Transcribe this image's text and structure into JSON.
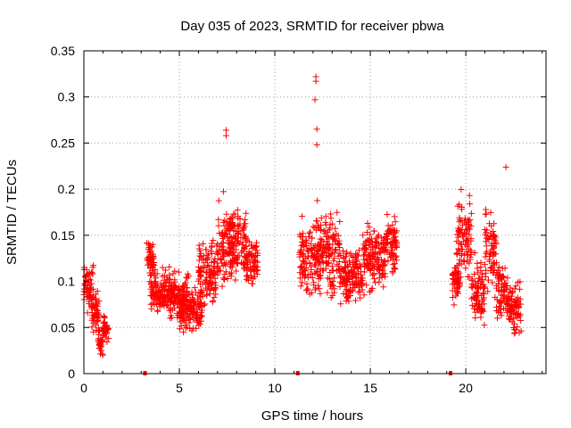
{
  "chart_data": {
    "type": "scatter",
    "title": "Day 035 of 2023, SRMTID for receiver pbwa",
    "xlabel": "GPS time / hours",
    "ylabel": "SRMTID / TECUs",
    "xlim": [
      0,
      24.2
    ],
    "ylim": [
      0,
      0.35
    ],
    "xticks": [
      0,
      5,
      10,
      15,
      20
    ],
    "xtick_labels": [
      "0",
      "5",
      "10",
      "15",
      "20"
    ],
    "yticks": [
      0,
      0.05,
      0.1,
      0.15,
      0.2,
      0.25,
      0.3,
      0.35
    ],
    "ytick_labels": [
      "0",
      "0.05",
      "0.1",
      "0.15",
      "0.2",
      "0.25",
      "0.3",
      "0.35"
    ],
    "grid": true,
    "marker": "+",
    "color": "#ff0000",
    "zero_markers_x": [
      3.2,
      11.2,
      19.2
    ],
    "outliers": [
      {
        "x": 12.15,
        "y": 0.322
      },
      {
        "x": 12.15,
        "y": 0.317
      },
      {
        "x": 12.1,
        "y": 0.297
      },
      {
        "x": 12.2,
        "y": 0.265
      },
      {
        "x": 12.2,
        "y": 0.248
      },
      {
        "x": 7.45,
        "y": 0.264
      },
      {
        "x": 7.45,
        "y": 0.258
      },
      {
        "x": 22.1,
        "y": 0.224
      }
    ],
    "segments": [
      {
        "x0": 0.0,
        "x1": 0.5,
        "center": 0.095,
        "spread": 0.035
      },
      {
        "x0": 0.4,
        "x1": 0.8,
        "center": 0.068,
        "spread": 0.03
      },
      {
        "x0": 0.75,
        "x1": 1.0,
        "center": 0.035,
        "spread": 0.02
      },
      {
        "x0": 1.0,
        "x1": 1.3,
        "center": 0.05,
        "spread": 0.02
      },
      {
        "x0": 3.3,
        "x1": 3.7,
        "center": 0.125,
        "spread": 0.03
      },
      {
        "x0": 3.5,
        "x1": 4.5,
        "center": 0.09,
        "spread": 0.03
      },
      {
        "x0": 4.5,
        "x1": 5.5,
        "center": 0.085,
        "spread": 0.03
      },
      {
        "x0": 5.0,
        "x1": 6.2,
        "center": 0.07,
        "spread": 0.03
      },
      {
        "x0": 6.0,
        "x1": 7.0,
        "center": 0.11,
        "spread": 0.045
      },
      {
        "x0": 7.0,
        "x1": 7.8,
        "center": 0.14,
        "spread": 0.06
      },
      {
        "x0": 7.6,
        "x1": 8.5,
        "center": 0.14,
        "spread": 0.05
      },
      {
        "x0": 8.5,
        "x1": 9.1,
        "center": 0.12,
        "spread": 0.04
      },
      {
        "x0": 11.3,
        "x1": 12.3,
        "center": 0.125,
        "spread": 0.05
      },
      {
        "x0": 12.2,
        "x1": 13.4,
        "center": 0.13,
        "spread": 0.06
      },
      {
        "x0": 13.4,
        "x1": 14.6,
        "center": 0.105,
        "spread": 0.045
      },
      {
        "x0": 14.6,
        "x1": 15.8,
        "center": 0.125,
        "spread": 0.045
      },
      {
        "x0": 15.8,
        "x1": 16.4,
        "center": 0.14,
        "spread": 0.04
      },
      {
        "x0": 19.3,
        "x1": 19.7,
        "center": 0.1,
        "spread": 0.03
      },
      {
        "x0": 19.5,
        "x1": 20.3,
        "center": 0.15,
        "spread": 0.06
      },
      {
        "x0": 20.3,
        "x1": 21.0,
        "center": 0.09,
        "spread": 0.045
      },
      {
        "x0": 21.0,
        "x1": 21.6,
        "center": 0.13,
        "spread": 0.06
      },
      {
        "x0": 21.6,
        "x1": 22.2,
        "center": 0.09,
        "spread": 0.04
      },
      {
        "x0": 22.2,
        "x1": 22.9,
        "center": 0.075,
        "spread": 0.04
      }
    ]
  }
}
